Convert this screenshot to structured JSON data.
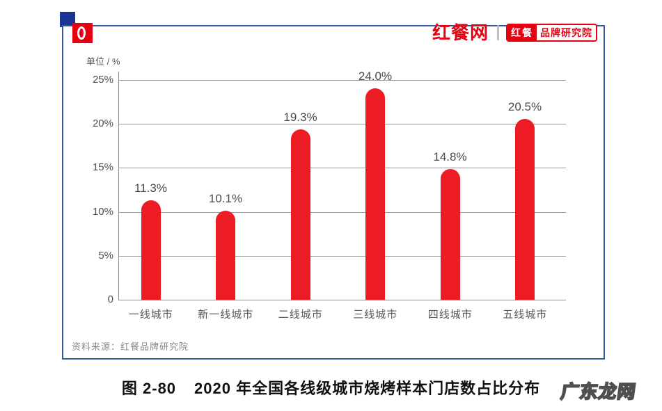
{
  "header": {
    "brand_name": "红餐网",
    "badge": {
      "left": "红餐",
      "right": "品牌研究院"
    }
  },
  "chart_data": {
    "type": "bar",
    "unit_label": "单位 / %",
    "categories": [
      "一线城市",
      "新一线城市",
      "二线城市",
      "三线城市",
      "四线城市",
      "五线城市"
    ],
    "values": [
      11.3,
      10.1,
      19.3,
      24.0,
      14.8,
      20.5
    ],
    "value_labels": [
      "11.3%",
      "10.1%",
      "19.3%",
      "24.0%",
      "14.8%",
      "20.5%"
    ],
    "y_ticks": [
      "25%",
      "20%",
      "15%",
      "10%",
      "5%",
      "0"
    ],
    "ylim": [
      0,
      25
    ],
    "grid": true,
    "legend": "none",
    "bar_color": "#ED1C24",
    "source": "资料来源：红餐品牌研究院"
  },
  "caption": {
    "label": "图 2-80",
    "text": "2020 年全国各线级城市烧烤样本门店数占比分布"
  },
  "watermark": "广东龙网",
  "colors": {
    "bar": "#ED1C24",
    "frame_border": "#3A55A6",
    "corner_square": "#1C3493",
    "brand_red": "#E60012",
    "gridline": "#999999"
  }
}
